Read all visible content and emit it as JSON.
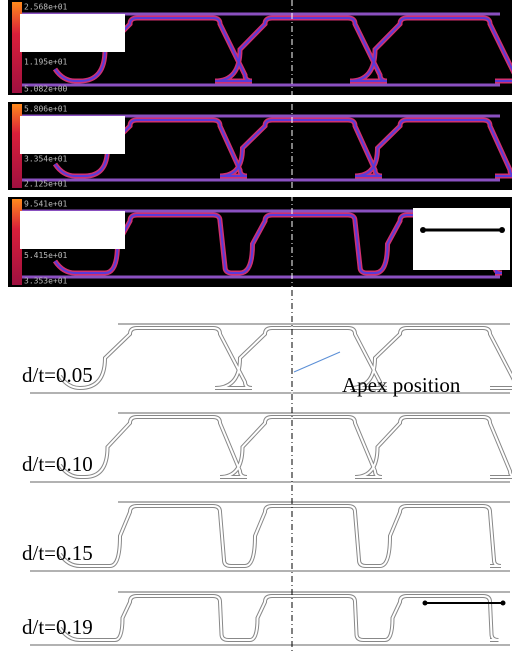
{
  "panels": [
    {
      "colorbar": [
        "2.568e+01",
        "1.195e+01",
        "5.082e+00"
      ]
    },
    {
      "colorbar": [
        "5.806e+01",
        "3.354e+01",
        "2.125e+01"
      ]
    },
    {
      "colorbar": [
        "9.541e+01",
        "5.415e+01",
        "3.353e+01"
      ]
    }
  ],
  "profiles": [
    "d/t=0.05",
    "d/t=0.10",
    "d/t=0.15",
    "d/t=0.19"
  ],
  "annotation": "Apex position"
}
